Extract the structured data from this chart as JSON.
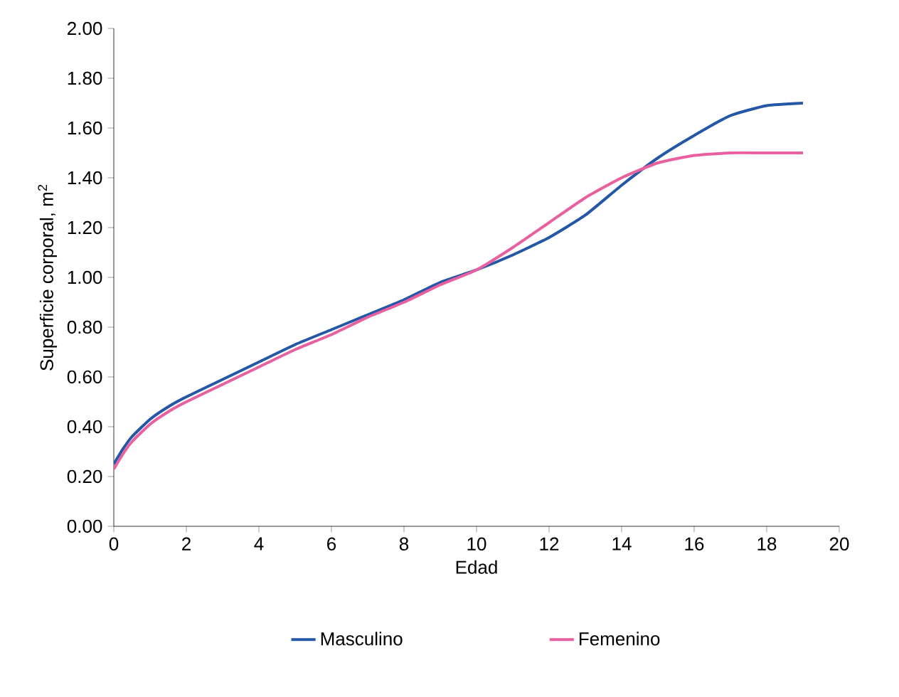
{
  "chart_data": {
    "type": "line",
    "xlabel": "Edad",
    "ylabel": "Superficie corporal, m$^{2}$",
    "xlim": [
      0,
      20
    ],
    "xticks": [
      0,
      2,
      4,
      6,
      8,
      10,
      12,
      14,
      16,
      18,
      20
    ],
    "ylim": [
      0,
      2
    ],
    "yticks": [
      {
        "value": 0,
        "label": "0.00"
      },
      {
        "value": 0.2,
        "label": "0.20"
      },
      {
        "value": 0.4,
        "label": "0.40"
      },
      {
        "value": 0.6,
        "label": "0.60"
      },
      {
        "value": 0.8,
        "label": "0.80"
      },
      {
        "value": 1.0,
        "label": "1.00"
      },
      {
        "value": 1.2,
        "label": "1.20"
      },
      {
        "value": 1.4,
        "label": "1.40"
      },
      {
        "value": 1.6,
        "label": "1.60"
      },
      {
        "value": 1.8,
        "label": "1.80"
      },
      {
        "value": 2.0,
        "label": "2.00"
      }
    ],
    "x": [
      0,
      0.25,
      0.5,
      1,
      1.5,
      2,
      3,
      4,
      5,
      6,
      7,
      8,
      9,
      10,
      11,
      12,
      13,
      14,
      15,
      16,
      17,
      18,
      19
    ],
    "series": [
      {
        "name": "Masculino",
        "color": "#2457a6",
        "values": [
          0.25,
          0.31,
          0.36,
          0.43,
          0.48,
          0.52,
          0.59,
          0.66,
          0.73,
          0.79,
          0.85,
          0.91,
          0.98,
          1.03,
          1.09,
          1.16,
          1.25,
          1.37,
          1.48,
          1.57,
          1.65,
          1.69,
          1.7
        ]
      },
      {
        "name": "Femenino",
        "color": "#e8609f",
        "values": [
          0.23,
          0.29,
          0.34,
          0.41,
          0.46,
          0.5,
          0.57,
          0.64,
          0.71,
          0.77,
          0.84,
          0.9,
          0.97,
          1.03,
          1.12,
          1.22,
          1.32,
          1.4,
          1.46,
          1.49,
          1.5,
          1.5,
          1.5
        ]
      }
    ],
    "legend": "bottom",
    "grid": false,
    "marker": "none",
    "line_style": "solid"
  }
}
